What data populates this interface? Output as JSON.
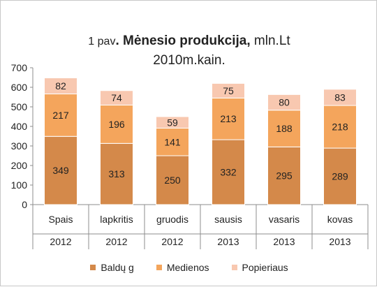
{
  "chart_data": {
    "type": "bar",
    "stacked": true,
    "title_prefix": "1 pav",
    "title_main": ". Mėnesio produkcija,",
    "title_unit": " mln.Lt",
    "title_line2": "2010m.kain.",
    "categories": [
      "Spais",
      "lapkritis",
      "gruodis",
      "sausis",
      "vasaris",
      "kovas"
    ],
    "category_years": [
      "2012",
      "2012",
      "2012",
      "2013",
      "2013",
      "2013"
    ],
    "series": [
      {
        "name": "Baldų g",
        "color": "#d4894a",
        "values": [
          349,
          313,
          250,
          332,
          295,
          289
        ]
      },
      {
        "name": "Medienos",
        "color": "#f4a55c",
        "values": [
          217,
          196,
          141,
          213,
          188,
          218
        ]
      },
      {
        "name": "Popieriaus",
        "color": "#f8c8b0",
        "values": [
          82,
          74,
          59,
          75,
          80,
          83
        ]
      }
    ],
    "ylim": [
      0,
      700
    ],
    "yticks": [
      0,
      100,
      200,
      300,
      400,
      500,
      600,
      700
    ],
    "grid": false,
    "legend_position": "bottom"
  }
}
